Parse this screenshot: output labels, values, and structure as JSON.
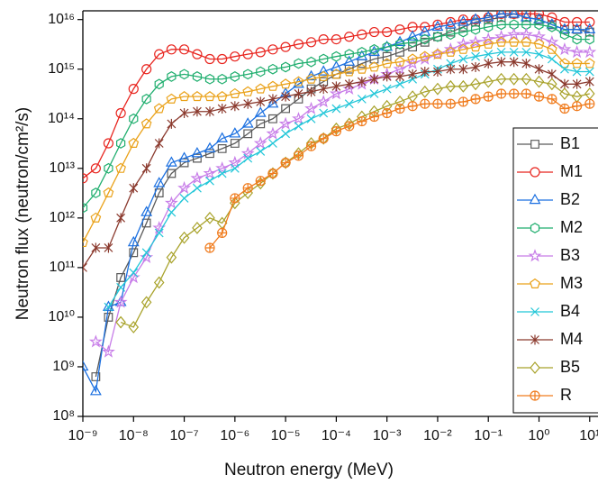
{
  "chart_data": {
    "type": "line",
    "x_label": "Neutron energy (MeV)",
    "y_label": "Neutron flux (neutron/cm²/s)",
    "log_x": true,
    "log_y": true,
    "grid": false,
    "legend": "right",
    "xlim": [
      1e-09,
      14
    ],
    "ylim": [
      100000000.0,
      1.5e+16
    ],
    "xticks": [
      {
        "value": 1e-09,
        "label": "10⁻⁹"
      },
      {
        "value": 1e-08,
        "label": "10⁻⁸"
      },
      {
        "value": 1e-07,
        "label": "10⁻⁷"
      },
      {
        "value": 1e-06,
        "label": "10⁻⁶"
      },
      {
        "value": 1e-05,
        "label": "10⁻⁵"
      },
      {
        "value": 0.0001,
        "label": "10⁻⁴"
      },
      {
        "value": 0.001,
        "label": "10⁻³"
      },
      {
        "value": 0.01,
        "label": "10⁻²"
      },
      {
        "value": 0.1,
        "label": "10⁻¹"
      },
      {
        "value": 1,
        "label": "10⁰"
      },
      {
        "value": 10,
        "label": "10¹"
      }
    ],
    "yticks": [
      {
        "value": 100000000.0,
        "label": "10⁸"
      },
      {
        "value": 1000000000.0,
        "label": "10⁹"
      },
      {
        "value": 10000000000.0,
        "label": "10¹⁰"
      },
      {
        "value": 100000000000.0,
        "label": "10¹¹"
      },
      {
        "value": 1000000000000.0,
        "label": "10¹²"
      },
      {
        "value": 10000000000000.0,
        "label": "10¹³"
      },
      {
        "value": 100000000000000.0,
        "label": "10¹⁴"
      },
      {
        "value": 1000000000000000.0,
        "label": "10¹⁵"
      },
      {
        "value": 1e+16,
        "label": "10¹⁶"
      }
    ],
    "x": [
      1e-09,
      1.8e-09,
      3.2e-09,
      5.6e-09,
      1e-08,
      1.8e-08,
      3.2e-08,
      5.6e-08,
      1e-07,
      1.8e-07,
      3.2e-07,
      5.6e-07,
      1e-06,
      1.8e-06,
      3.2e-06,
      5.6e-06,
      1e-05,
      1.8e-05,
      3.2e-05,
      5.6e-05,
      0.0001,
      0.00018,
      0.00032,
      0.00056,
      0.001,
      0.0018,
      0.0032,
      0.0056,
      0.01,
      0.018,
      0.032,
      0.056,
      0.1,
      0.18,
      0.32,
      0.56,
      1,
      1.8,
      3.2,
      5.6,
      10
    ],
    "series": [
      {
        "name": "B1",
        "color": "#5a5a5a",
        "marker": "square",
        "values": [
          null,
          630000000.0,
          10000000000.0,
          63000000000.0,
          200000000000.0,
          790000000000.0,
          3200000000000.0,
          7900000000000.0,
          13000000000000.0,
          16000000000000.0,
          20000000000000.0,
          25000000000000.0,
          32000000000000.0,
          50000000000000.0,
          79000000000000.0,
          100000000000000.0,
          160000000000000.0,
          250000000000000.0,
          400000000000000.0,
          560000000000000.0,
          790000000000000.0,
          1000000000000000.0,
          1300000000000000.0,
          1600000000000000.0,
          1800000000000000.0,
          2200000000000000.0,
          2800000000000000.0,
          3500000000000000.0,
          4500000000000000.0,
          5600000000000000.0,
          7100000000000000.0,
          8900000000000000.0,
          1e+16,
          1.1e+16,
          1.3e+16,
          1.1e+16,
          1e+16,
          7900000000000000.0,
          6300000000000000.0,
          6300000000000000.0,
          5600000000000000.0
        ]
      },
      {
        "name": "M1",
        "color": "#e8251f",
        "marker": "circle",
        "values": [
          6300000000000.0,
          10000000000000.0,
          32000000000000.0,
          130000000000000.0,
          400000000000000.0,
          1000000000000000.0,
          2000000000000000.0,
          2500000000000000.0,
          2500000000000000.0,
          2000000000000000.0,
          1600000000000000.0,
          1600000000000000.0,
          1800000000000000.0,
          2000000000000000.0,
          2200000000000000.0,
          2500000000000000.0,
          2800000000000000.0,
          3200000000000000.0,
          3500000000000000.0,
          4000000000000000.0,
          4000000000000000.0,
          4500000000000000.0,
          5000000000000000.0,
          5600000000000000.0,
          5600000000000000.0,
          6300000000000000.0,
          7100000000000000.0,
          7100000000000000.0,
          7900000000000000.0,
          8900000000000000.0,
          1e+16,
          1e+16,
          1.1e+16,
          1.3e+16,
          1.3e+16,
          1.3e+16,
          1.3e+16,
          1.1e+16,
          8900000000000000.0,
          8900000000000000.0,
          8900000000000000.0
        ]
      },
      {
        "name": "B2",
        "color": "#1a6fe0",
        "marker": "triangle",
        "values": [
          1000000000.0,
          320000000.0,
          16000000000.0,
          20000000000.0,
          320000000000.0,
          1300000000000.0,
          5000000000000.0,
          13000000000000.0,
          16000000000000.0,
          20000000000000.0,
          25000000000000.0,
          40000000000000.0,
          50000000000000.0,
          79000000000000.0,
          130000000000000.0,
          200000000000000.0,
          320000000000000.0,
          500000000000000.0,
          710000000000000.0,
          890000000000000.0,
          1100000000000000.0,
          1400000000000000.0,
          1800000000000000.0,
          2200000000000000.0,
          2800000000000000.0,
          3500000000000000.0,
          4500000000000000.0,
          5600000000000000.0,
          7100000000000000.0,
          7900000000000000.0,
          8900000000000000.0,
          1e+16,
          1.1e+16,
          1.3e+16,
          1.3e+16,
          1.1e+16,
          1e+16,
          7900000000000000.0,
          6300000000000000.0,
          6300000000000000.0,
          6300000000000000.0
        ]
      },
      {
        "name": "M2",
        "color": "#1fae6e",
        "marker": "hexagon",
        "values": [
          1600000000000.0,
          3200000000000.0,
          10000000000000.0,
          32000000000000.0,
          100000000000000.0,
          250000000000000.0,
          500000000000000.0,
          710000000000000.0,
          790000000000000.0,
          710000000000000.0,
          630000000000000.0,
          630000000000000.0,
          710000000000000.0,
          790000000000000.0,
          890000000000000.0,
          1000000000000000.0,
          1100000000000000.0,
          1300000000000000.0,
          1400000000000000.0,
          1600000000000000.0,
          1800000000000000.0,
          2000000000000000.0,
          2200000000000000.0,
          2500000000000000.0,
          2800000000000000.0,
          3200000000000000.0,
          3500000000000000.0,
          4000000000000000.0,
          4500000000000000.0,
          5000000000000000.0,
          5600000000000000.0,
          6300000000000000.0,
          7100000000000000.0,
          7900000000000000.0,
          7900000000000000.0,
          7900000000000000.0,
          7900000000000000.0,
          7100000000000000.0,
          5000000000000000.0,
          4000000000000000.0,
          4000000000000000.0
        ]
      },
      {
        "name": "B3",
        "color": "#c77ce8",
        "marker": "star",
        "values": [
          null,
          3200000000.0,
          2000000000.0,
          20000000000.0,
          63000000000.0,
          160000000000.0,
          630000000000.0,
          2000000000000.0,
          4000000000000.0,
          6300000000000.0,
          7900000000000.0,
          10000000000000.0,
          13000000000000.0,
          20000000000000.0,
          32000000000000.0,
          50000000000000.0,
          79000000000000.0,
          100000000000000.0,
          160000000000000.0,
          220000000000000.0,
          320000000000000.0,
          400000000000000.0,
          500000000000000.0,
          630000000000000.0,
          790000000000000.0,
          1000000000000000.0,
          1300000000000000.0,
          1600000000000000.0,
          2000000000000000.0,
          2500000000000000.0,
          3200000000000000.0,
          3500000000000000.0,
          4000000000000000.0,
          4500000000000000.0,
          5000000000000000.0,
          5000000000000000.0,
          4500000000000000.0,
          3500000000000000.0,
          2500000000000000.0,
          2200000000000000.0,
          2200000000000000.0
        ]
      },
      {
        "name": "M3",
        "color": "#eaa21a",
        "marker": "pentagon",
        "values": [
          320000000000.0,
          1000000000000.0,
          3200000000000.0,
          10000000000000.0,
          32000000000000.0,
          79000000000000.0,
          160000000000000.0,
          250000000000000.0,
          280000000000000.0,
          280000000000000.0,
          280000000000000.0,
          280000000000000.0,
          320000000000000.0,
          350000000000000.0,
          400000000000000.0,
          450000000000000.0,
          500000000000000.0,
          560000000000000.0,
          630000000000000.0,
          710000000000000.0,
          790000000000000.0,
          890000000000000.0,
          1000000000000000.0,
          1100000000000000.0,
          1300000000000000.0,
          1400000000000000.0,
          1600000000000000.0,
          1800000000000000.0,
          2000000000000000.0,
          2200000000000000.0,
          2500000000000000.0,
          2800000000000000.0,
          3200000000000000.0,
          3500000000000000.0,
          3500000000000000.0,
          3500000000000000.0,
          3200000000000000.0,
          2500000000000000.0,
          1300000000000000.0,
          1300000000000000.0,
          1300000000000000.0
        ]
      },
      {
        "name": "B4",
        "color": "#22c6d8",
        "marker": "x",
        "values": [
          null,
          null,
          16000000000.0,
          40000000000.0,
          79000000000.0,
          200000000000.0,
          500000000000.0,
          1300000000000.0,
          2500000000000.0,
          4000000000000.0,
          5600000000000.0,
          7900000000000.0,
          10000000000000.0,
          16000000000000.0,
          22000000000000.0,
          32000000000000.0,
          50000000000000.0,
          71000000000000.0,
          100000000000000.0,
          130000000000000.0,
          160000000000000.0,
          200000000000000.0,
          250000000000000.0,
          320000000000000.0,
          400000000000000.0,
          500000000000000.0,
          630000000000000.0,
          790000000000000.0,
          1000000000000000.0,
          1300000000000000.0,
          1600000000000000.0,
          1800000000000000.0,
          2000000000000000.0,
          2200000000000000.0,
          2200000000000000.0,
          2200000000000000.0,
          2000000000000000.0,
          1600000000000000.0,
          1000000000000000.0,
          890000000000000.0,
          890000000000000.0
        ]
      },
      {
        "name": "M4",
        "color": "#8b3a2e",
        "marker": "asterisk",
        "values": [
          100000000000.0,
          250000000000.0,
          250000000000.0,
          1000000000000.0,
          4000000000000.0,
          10000000000000.0,
          32000000000000.0,
          79000000000000.0,
          130000000000000.0,
          140000000000000.0,
          140000000000000.0,
          160000000000000.0,
          180000000000000.0,
          200000000000000.0,
          220000000000000.0,
          250000000000000.0,
          280000000000000.0,
          320000000000000.0,
          350000000000000.0,
          400000000000000.0,
          450000000000000.0,
          500000000000000.0,
          560000000000000.0,
          630000000000000.0,
          710000000000000.0,
          710000000000000.0,
          790000000000000.0,
          890000000000000.0,
          890000000000000.0,
          1000000000000000.0,
          1000000000000000.0,
          1100000000000000.0,
          1300000000000000.0,
          1400000000000000.0,
          1400000000000000.0,
          1300000000000000.0,
          1000000000000000.0,
          790000000000000.0,
          500000000000000.0,
          500000000000000.0,
          560000000000000.0
        ]
      },
      {
        "name": "B5",
        "color": "#a8a22a",
        "marker": "diamond",
        "values": [
          null,
          null,
          null,
          7900000000.0,
          6300000000.0,
          20000000000.0,
          50000000000.0,
          160000000000.0,
          400000000000.0,
          630000000000.0,
          1000000000000.0,
          790000000000.0,
          2000000000000.0,
          3200000000000.0,
          5000000000000.0,
          7900000000000.0,
          13000000000000.0,
          20000000000000.0,
          32000000000000.0,
          40000000000000.0,
          63000000000000.0,
          79000000000000.0,
          110000000000000.0,
          140000000000000.0,
          180000000000000.0,
          220000000000000.0,
          280000000000000.0,
          350000000000000.0,
          400000000000000.0,
          450000000000000.0,
          450000000000000.0,
          500000000000000.0,
          560000000000000.0,
          630000000000000.0,
          630000000000000.0,
          630000000000000.0,
          560000000000000.0,
          500000000000000.0,
          320000000000000.0,
          280000000000000.0,
          320000000000000.0
        ]
      },
      {
        "name": "R",
        "color": "#f07c1e",
        "marker": "circleplus",
        "values": [
          null,
          null,
          null,
          null,
          null,
          null,
          null,
          null,
          null,
          null,
          250000000000.0,
          500000000000.0,
          2500000000000.0,
          4000000000000.0,
          5600000000000.0,
          7900000000000.0,
          13000000000000.0,
          18000000000000.0,
          28000000000000.0,
          40000000000000.0,
          56000000000000.0,
          71000000000000.0,
          89000000000000.0,
          110000000000000.0,
          130000000000000.0,
          160000000000000.0,
          180000000000000.0,
          200000000000000.0,
          200000000000000.0,
          200000000000000.0,
          220000000000000.0,
          250000000000000.0,
          280000000000000.0,
          320000000000000.0,
          320000000000000.0,
          320000000000000.0,
          280000000000000.0,
          250000000000000.0,
          160000000000000.0,
          180000000000000.0,
          200000000000000.0
        ]
      }
    ]
  }
}
